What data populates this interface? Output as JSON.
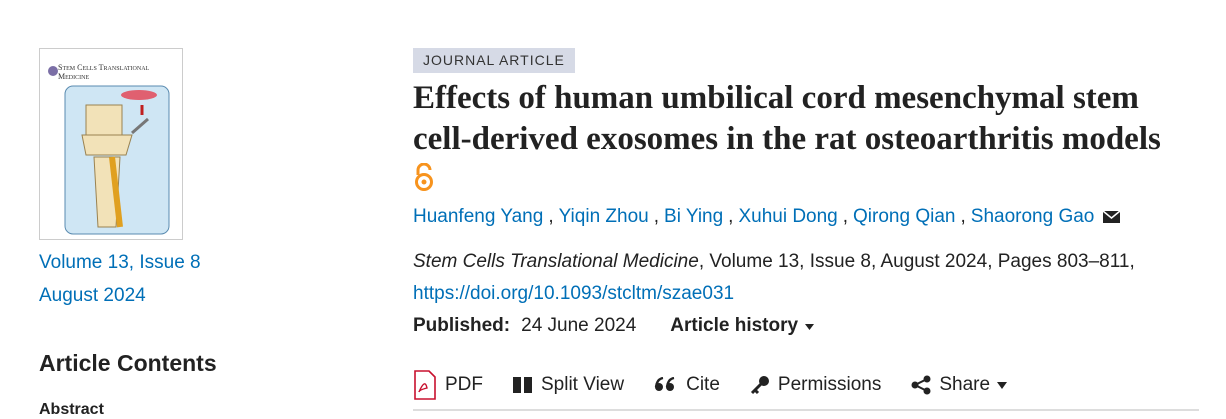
{
  "cover": {
    "journal_title": "Stem Cells Translational Medicine"
  },
  "issue": {
    "volume_issue": "Volume 13, Issue 8",
    "date": "August 2024"
  },
  "contents": {
    "heading": "Article Contents",
    "items": [
      "Abstract"
    ]
  },
  "article": {
    "type_badge": "JOURNAL ARTICLE",
    "title": "Effects of human umbilical cord mesenchymal stem cell-derived exosomes in the rat osteoarthritis models",
    "authors": [
      "Huanfeng Yang",
      "Yiqin Zhou",
      "Bi Ying",
      "Xuhui Dong",
      "Qirong Qian",
      "Shaorong Gao"
    ],
    "author_separator": ",",
    "citation": {
      "journal": "Stem Cells Translational Medicine",
      "details": ", Volume 13, Issue 8, August 2024, Pages 803–811,"
    },
    "doi": "https://doi.org/10.1093/stcltm/szae031",
    "published_label": "Published:",
    "published_date": "24 June 2024",
    "history_label": "Article history"
  },
  "toolbar": [
    "PDF",
    "Split View",
    "Cite",
    "Permissions",
    "Share"
  ]
}
